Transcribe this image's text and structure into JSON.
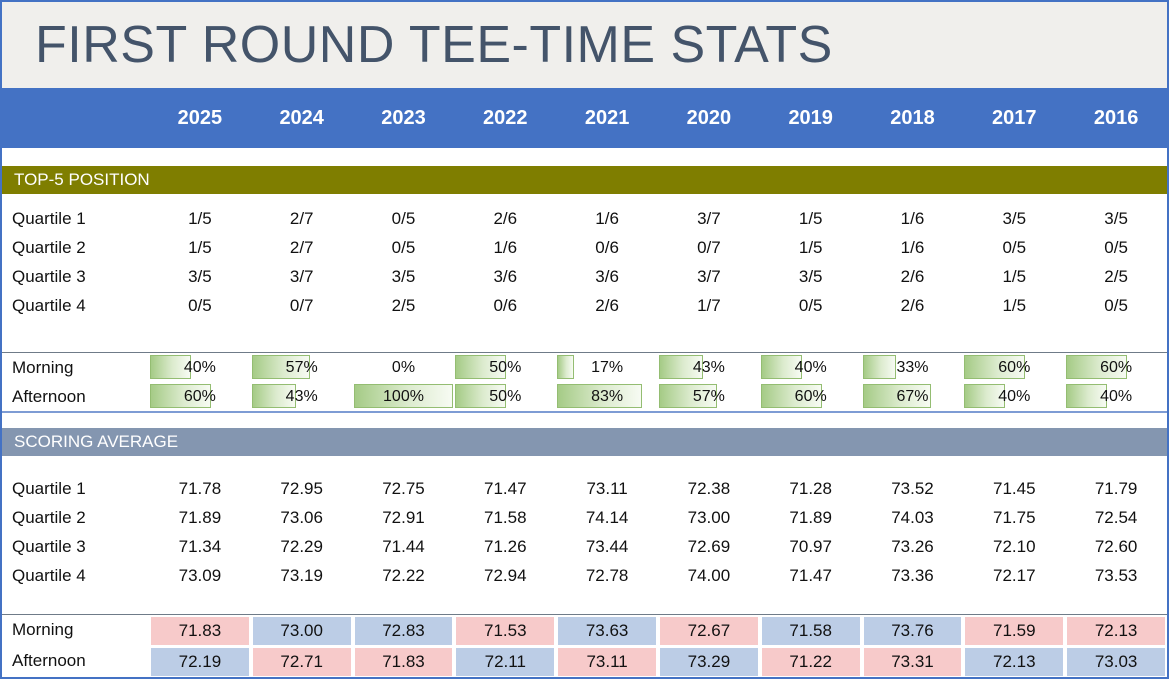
{
  "title": "FIRST ROUND TEE-TIME STATS",
  "years": [
    "2025",
    "2024",
    "2023",
    "2022",
    "2021",
    "2020",
    "2019",
    "2018",
    "2017",
    "2016"
  ],
  "colors": {
    "outer_border": "#4472C4",
    "year_header_blue": "#4472C4",
    "title_text": "#44546A",
    "title_background": "#F0EFEC",
    "top5_band_olive": "#7F7E00",
    "scoring_band_slate": "#8496B0",
    "databar_green": "#A5CB86",
    "databar_border": "#94BD72",
    "highlight_pink": "#F7CACA",
    "highlight_blue": "#BCCDE6"
  },
  "chart_data": [
    {
      "type": "table",
      "title": "TOP-5 POSITION",
      "columns": [
        "2025",
        "2024",
        "2023",
        "2022",
        "2021",
        "2020",
        "2019",
        "2018",
        "2017",
        "2016"
      ],
      "quartile_rows": [
        {
          "label": "Quartile 1",
          "values": [
            "1/5",
            "2/7",
            "0/5",
            "2/6",
            "1/6",
            "3/7",
            "1/5",
            "1/6",
            "3/5",
            "3/5"
          ]
        },
        {
          "label": "Quartile 2",
          "values": [
            "1/5",
            "2/7",
            "0/5",
            "1/6",
            "0/6",
            "0/7",
            "1/5",
            "1/6",
            "0/5",
            "0/5"
          ]
        },
        {
          "label": "Quartile 3",
          "values": [
            "3/5",
            "3/7",
            "3/5",
            "3/6",
            "3/6",
            "3/7",
            "3/5",
            "2/6",
            "1/5",
            "2/5"
          ]
        },
        {
          "label": "Quartile 4",
          "values": [
            "0/5",
            "0/7",
            "2/5",
            "0/6",
            "2/6",
            "1/7",
            "0/5",
            "2/6",
            "1/5",
            "0/5"
          ]
        }
      ],
      "split_rows": [
        {
          "label": "Morning",
          "percent": [
            40,
            57,
            0,
            50,
            17,
            43,
            40,
            33,
            60,
            60
          ]
        },
        {
          "label": "Afternoon",
          "percent": [
            60,
            43,
            100,
            50,
            83,
            57,
            60,
            67,
            40,
            40
          ]
        }
      ],
      "layout": {
        "bars": "green gradient data bars, length proportional to percent, zero shows no bar"
      }
    },
    {
      "type": "table",
      "title": "SCORING AVERAGE",
      "columns": [
        "2025",
        "2024",
        "2023",
        "2022",
        "2021",
        "2020",
        "2019",
        "2018",
        "2017",
        "2016"
      ],
      "quartile_rows": [
        {
          "label": "Quartile 1",
          "values": [
            "71.78",
            "72.95",
            "72.75",
            "71.47",
            "73.11",
            "72.38",
            "71.28",
            "73.52",
            "71.45",
            "71.79"
          ]
        },
        {
          "label": "Quartile 2",
          "values": [
            "71.89",
            "73.06",
            "72.91",
            "71.58",
            "74.14",
            "73.00",
            "71.89",
            "74.03",
            "71.75",
            "72.54"
          ]
        },
        {
          "label": "Quartile 3",
          "values": [
            "71.34",
            "72.29",
            "71.44",
            "71.26",
            "73.44",
            "72.69",
            "70.97",
            "73.26",
            "72.10",
            "72.60"
          ]
        },
        {
          "label": "Quartile 4",
          "values": [
            "73.09",
            "73.19",
            "72.22",
            "72.94",
            "72.78",
            "74.00",
            "71.47",
            "73.36",
            "72.17",
            "73.53"
          ]
        }
      ],
      "split_rows": [
        {
          "label": "Morning",
          "values": [
            "71.83",
            "73.00",
            "72.83",
            "71.53",
            "73.63",
            "72.67",
            "71.58",
            "73.76",
            "71.59",
            "72.13"
          ],
          "highlights": [
            "pink",
            "blue",
            "blue",
            "pink",
            "blue",
            "pink",
            "blue",
            "blue",
            "pink",
            "pink"
          ]
        },
        {
          "label": "Afternoon",
          "values": [
            "72.19",
            "72.71",
            "71.83",
            "72.11",
            "73.11",
            "73.29",
            "71.22",
            "73.31",
            "72.13",
            "73.03"
          ],
          "highlights": [
            "blue",
            "pink",
            "pink",
            "blue",
            "pink",
            "blue",
            "pink",
            "pink",
            "blue",
            "blue"
          ]
        }
      ],
      "layout": {
        "highlight_meaning": "pink = lower (better) score of the two tee times, blue = higher"
      }
    }
  ]
}
